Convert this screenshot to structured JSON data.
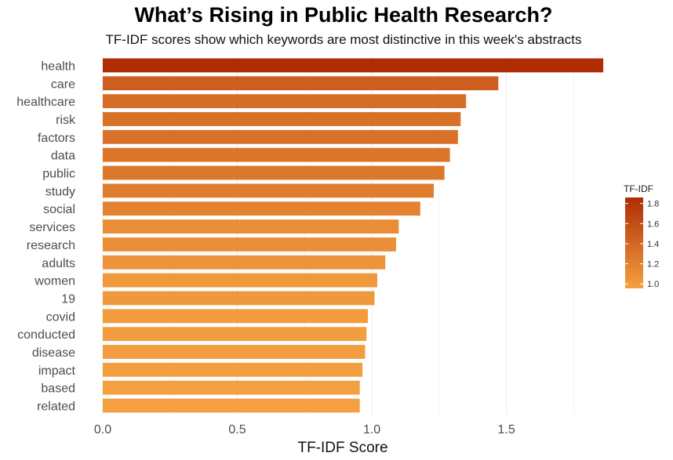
{
  "chart_data": {
    "type": "bar",
    "orientation": "horizontal",
    "title": "What’s Rising in Public Health Research?",
    "subtitle": "TF-IDF scores show which keywords are most distinctive in this week's abstracts",
    "xlabel": "TF-IDF Score",
    "ylabel": "",
    "xlim": [
      0,
      1.95
    ],
    "x_ticks": [
      "0.0",
      "0.5",
      "1.0",
      "1.5"
    ],
    "grid": true,
    "categories": [
      "health",
      "care",
      "healthcare",
      "risk",
      "factors",
      "data",
      "public",
      "study",
      "social",
      "services",
      "research",
      "adults",
      "women",
      "19",
      "covid",
      "conducted",
      "disease",
      "impact",
      "based",
      "related"
    ],
    "values": [
      1.86,
      1.47,
      1.35,
      1.33,
      1.32,
      1.29,
      1.27,
      1.23,
      1.18,
      1.1,
      1.09,
      1.05,
      1.02,
      1.01,
      0.985,
      0.98,
      0.975,
      0.965,
      0.955,
      0.955
    ],
    "legend": {
      "title": "TF-IDF",
      "position": "right",
      "ticks": [
        "1.0",
        "1.2",
        "1.4",
        "1.6",
        "1.8"
      ],
      "color_low": "#f4a040",
      "color_high": "#b02c05",
      "range": [
        0.955,
        1.86
      ]
    }
  }
}
